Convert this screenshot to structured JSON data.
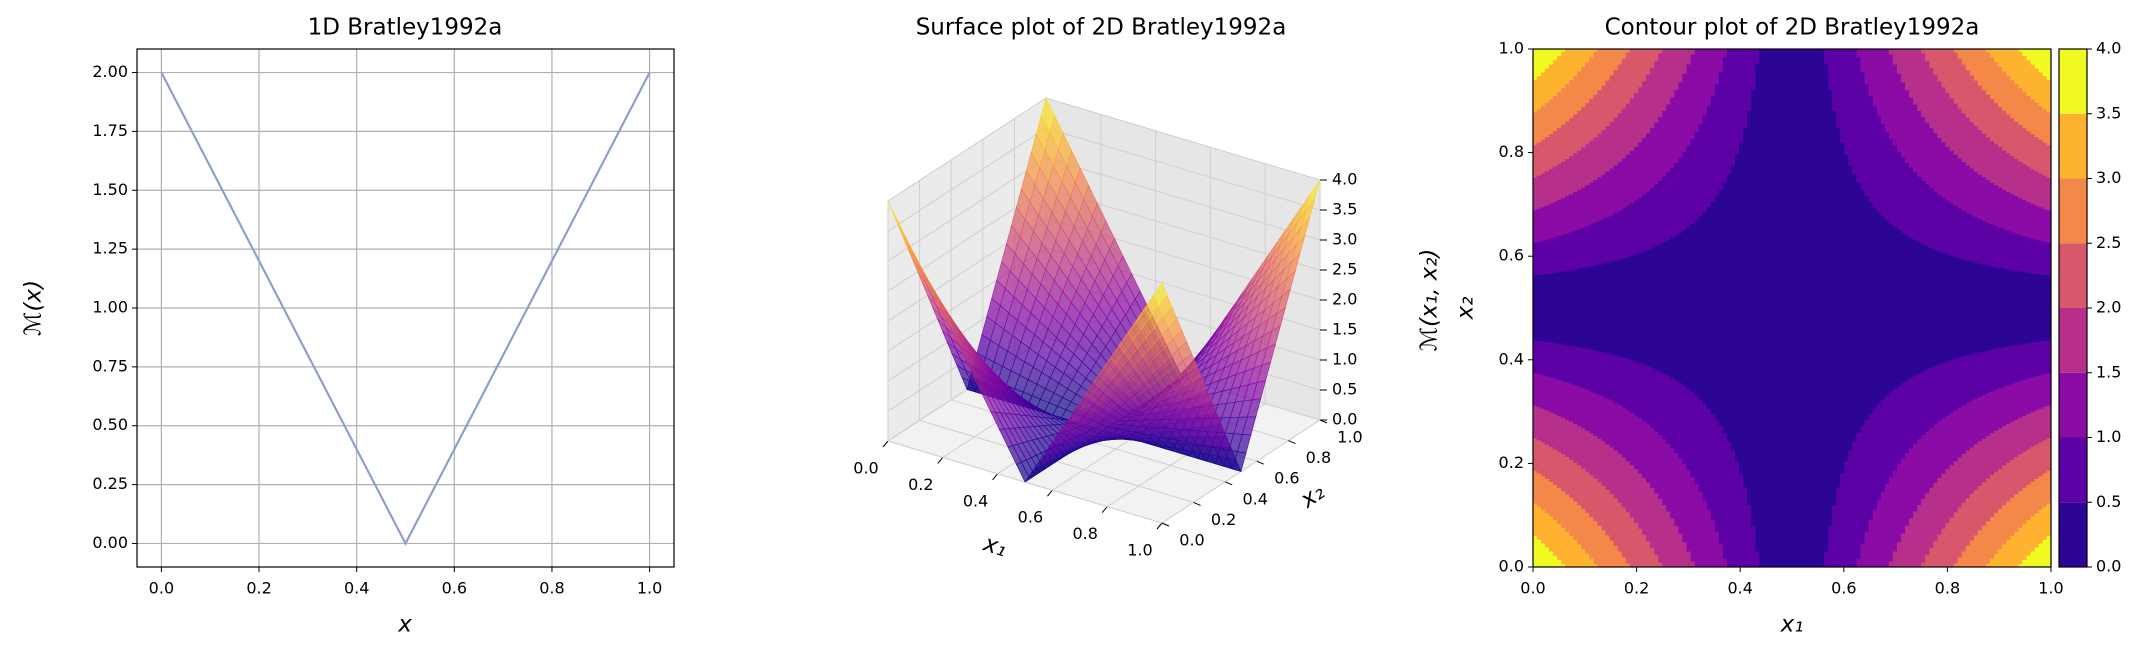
{
  "chart_data": [
    {
      "type": "line",
      "title": "1D Bratley1992a",
      "xlabel": "x",
      "ylabel": "ℳ(x)",
      "x": [
        0,
        0.5,
        1
      ],
      "values": [
        2,
        0,
        2
      ],
      "color": "#8da0cb",
      "xlim": [
        -0.05,
        1.05
      ],
      "ylim": [
        -0.1,
        2.1
      ],
      "xticks": [
        {
          "value": 0,
          "label": "0.0"
        },
        {
          "value": 0.2,
          "label": "0.2"
        },
        {
          "value": 0.4,
          "label": "0.4"
        },
        {
          "value": 0.6,
          "label": "0.6"
        },
        {
          "value": 0.8,
          "label": "0.8"
        },
        {
          "value": 1,
          "label": "1.0"
        }
      ],
      "yticks": [
        {
          "value": 0,
          "label": "0.00"
        },
        {
          "value": 0.25,
          "label": "0.25"
        },
        {
          "value": 0.5,
          "label": "0.50"
        },
        {
          "value": 0.75,
          "label": "0.75"
        },
        {
          "value": 1,
          "label": "1.00"
        },
        {
          "value": 1.25,
          "label": "1.25"
        },
        {
          "value": 1.5,
          "label": "1.50"
        },
        {
          "value": 1.75,
          "label": "1.75"
        },
        {
          "value": 2,
          "label": "2.00"
        }
      ],
      "grid": true
    },
    {
      "type": "surface",
      "title": "Surface plot of 2D Bratley1992a",
      "xlabel": "x₁",
      "ylabel": "x₂",
      "zlabel": "ℳ(x₁, x₂)",
      "x": [
        0,
        0.125,
        0.25,
        0.375,
        0.5,
        0.625,
        0.75,
        0.875,
        1
      ],
      "y": [
        0,
        0.125,
        0.25,
        0.375,
        0.5,
        0.625,
        0.75,
        0.875,
        1
      ],
      "z": [
        [
          4,
          3,
          2,
          1,
          0,
          1,
          2,
          3,
          4
        ],
        [
          3,
          2.25,
          1.5,
          0.75,
          0,
          0.75,
          1.5,
          2.25,
          3
        ],
        [
          2,
          1.5,
          1,
          0.5,
          0,
          0.5,
          1,
          1.5,
          2
        ],
        [
          1,
          0.75,
          0.5,
          0.25,
          0,
          0.25,
          0.5,
          0.75,
          1
        ],
        [
          0,
          0,
          0,
          0,
          0,
          0,
          0,
          0,
          0
        ],
        [
          1,
          0.75,
          0.5,
          0.25,
          0,
          0.25,
          0.5,
          0.75,
          1
        ],
        [
          2,
          1.5,
          1,
          0.5,
          0,
          0.5,
          1,
          1.5,
          2
        ],
        [
          3,
          2.25,
          1.5,
          0.75,
          0,
          0.75,
          1.5,
          2.25,
          3
        ],
        [
          4,
          3,
          2,
          1,
          0,
          1,
          2,
          3,
          4
        ]
      ],
      "xlim": [
        0,
        1
      ],
      "ylim": [
        0,
        1
      ],
      "zlim": [
        0,
        4
      ],
      "xticks": [
        {
          "value": 0,
          "label": "0.0"
        },
        {
          "value": 0.2,
          "label": "0.2"
        },
        {
          "value": 0.4,
          "label": "0.4"
        },
        {
          "value": 0.6,
          "label": "0.6"
        },
        {
          "value": 0.8,
          "label": "0.8"
        },
        {
          "value": 1,
          "label": "1.0"
        }
      ],
      "yticks": [
        {
          "value": 0,
          "label": "0.0"
        },
        {
          "value": 0.2,
          "label": "0.2"
        },
        {
          "value": 0.4,
          "label": "0.4"
        },
        {
          "value": 0.6,
          "label": "0.6"
        },
        {
          "value": 0.8,
          "label": "0.8"
        },
        {
          "value": 1,
          "label": "1.0"
        }
      ],
      "zticks": [
        {
          "value": 0,
          "label": "0.0"
        },
        {
          "value": 0.5,
          "label": "0.5"
        },
        {
          "value": 1,
          "label": "1.0"
        },
        {
          "value": 1.5,
          "label": "1.5"
        },
        {
          "value": 2,
          "label": "2.0"
        },
        {
          "value": 2.5,
          "label": "2.5"
        },
        {
          "value": 3,
          "label": "3.0"
        },
        {
          "value": 3.5,
          "label": "3.5"
        },
        {
          "value": 4,
          "label": "4.0"
        }
      ],
      "colormap": [
        "#0d0887",
        "#5302a3",
        "#8b0aa5",
        "#b83289",
        "#db5c68",
        "#f48849",
        "#febc2a",
        "#f0f921"
      ],
      "alpha": 0.7
    },
    {
      "type": "contour",
      "title": "Contour plot of 2D Bratley1992a",
      "xlabel": "x₁",
      "ylabel": "x₂",
      "x": [
        0,
        0.125,
        0.25,
        0.375,
        0.5,
        0.625,
        0.75,
        0.875,
        1
      ],
      "y": [
        0,
        0.125,
        0.25,
        0.375,
        0.5,
        0.625,
        0.75,
        0.875,
        1
      ],
      "z": [
        [
          4,
          3,
          2,
          1,
          0,
          1,
          2,
          3,
          4
        ],
        [
          3,
          2.25,
          1.5,
          0.75,
          0,
          0.75,
          1.5,
          2.25,
          3
        ],
        [
          2,
          1.5,
          1,
          0.5,
          0,
          0.5,
          1,
          1.5,
          2
        ],
        [
          1,
          0.75,
          0.5,
          0.25,
          0,
          0.25,
          0.5,
          0.75,
          1
        ],
        [
          0,
          0,
          0,
          0,
          0,
          0,
          0,
          0,
          0
        ],
        [
          1,
          0.75,
          0.5,
          0.25,
          0,
          0.25,
          0.5,
          0.75,
          1
        ],
        [
          2,
          1.5,
          1,
          0.5,
          0,
          0.5,
          1,
          1.5,
          2
        ],
        [
          3,
          2.25,
          1.5,
          0.75,
          0,
          0.75,
          1.5,
          2.25,
          3
        ],
        [
          4,
          3,
          2,
          1,
          0,
          1,
          2,
          3,
          4
        ]
      ],
      "levels": [
        0,
        0.5,
        1,
        1.5,
        2,
        2.5,
        3,
        3.5,
        4
      ],
      "colors": [
        "#2c0594",
        "#5c01a6",
        "#8a0ba5",
        "#b6308b",
        "#d8576b",
        "#f48849",
        "#fdb32f",
        "#f0f921"
      ],
      "xlim": [
        0,
        1
      ],
      "ylim": [
        0,
        1
      ],
      "xticks": [
        {
          "value": 0,
          "label": "0.0"
        },
        {
          "value": 0.2,
          "label": "0.2"
        },
        {
          "value": 0.4,
          "label": "0.4"
        },
        {
          "value": 0.6,
          "label": "0.6"
        },
        {
          "value": 0.8,
          "label": "0.8"
        },
        {
          "value": 1,
          "label": "1.0"
        }
      ],
      "yticks": [
        {
          "value": 0,
          "label": "0.0"
        },
        {
          "value": 0.2,
          "label": "0.2"
        },
        {
          "value": 0.4,
          "label": "0.4"
        },
        {
          "value": 0.6,
          "label": "0.6"
        },
        {
          "value": 0.8,
          "label": "0.8"
        },
        {
          "value": 1,
          "label": "1.0"
        }
      ],
      "cticks": [
        {
          "value": 0,
          "label": "0.0"
        },
        {
          "value": 0.5,
          "label": "0.5"
        },
        {
          "value": 1,
          "label": "1.0"
        },
        {
          "value": 1.5,
          "label": "1.5"
        },
        {
          "value": 2,
          "label": "2.0"
        },
        {
          "value": 2.5,
          "label": "2.5"
        },
        {
          "value": 3,
          "label": "3.0"
        },
        {
          "value": 3.5,
          "label": "3.5"
        },
        {
          "value": 4,
          "label": "4.0"
        }
      ]
    }
  ]
}
